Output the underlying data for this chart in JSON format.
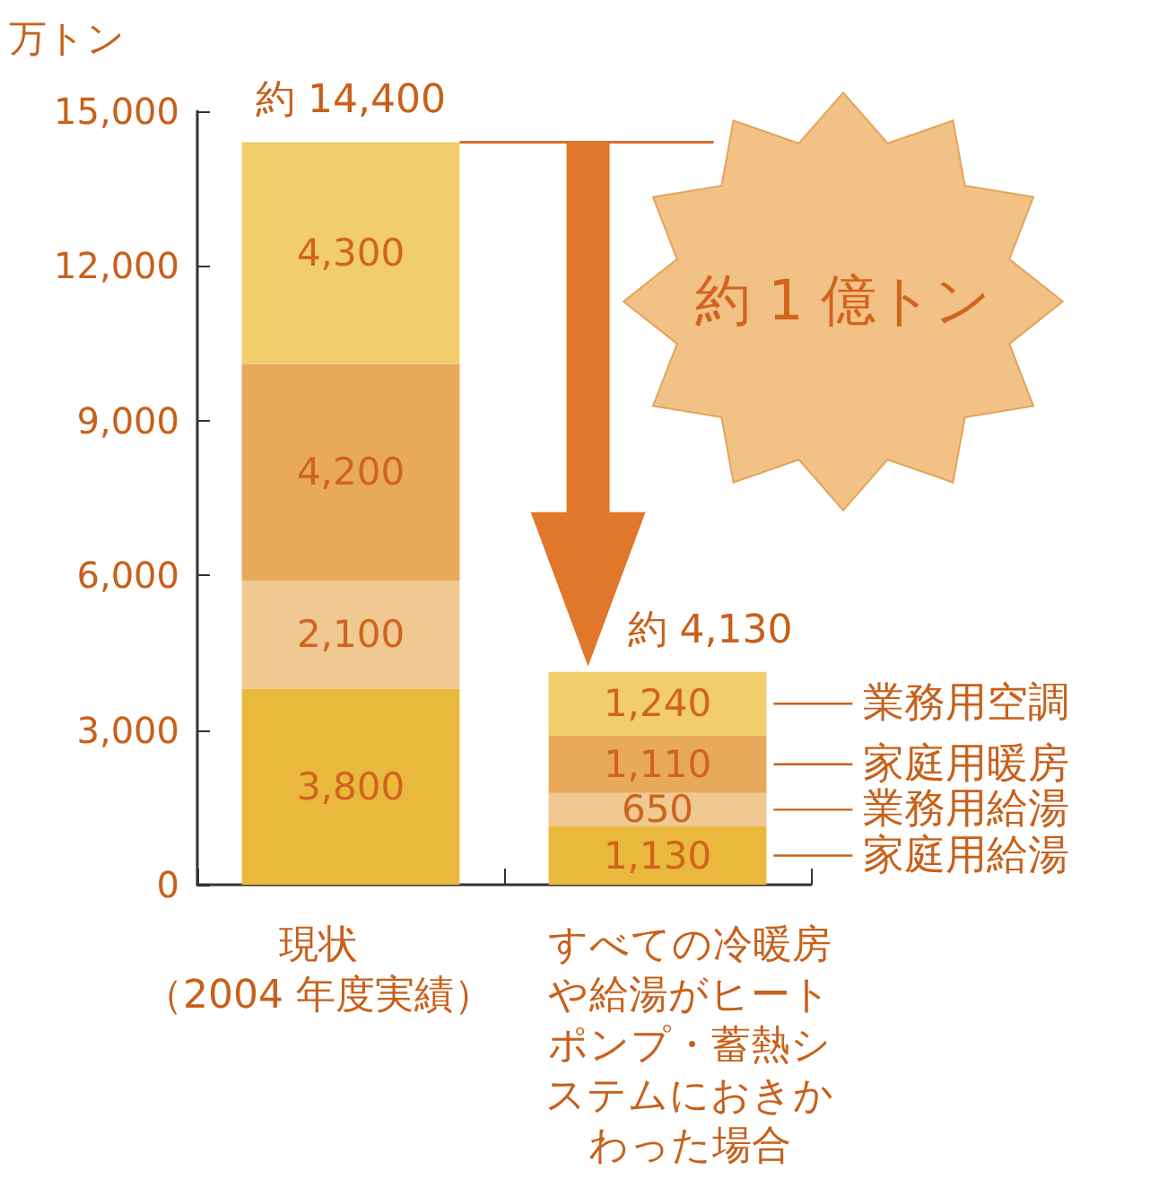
{
  "chart_data": {
    "type": "bar",
    "stacked": true,
    "ylabel": "万トン",
    "categories": [
      "現状（2004 年度実績）",
      "すべての冷暖房や給湯がヒートポンプ・蓄熱システムにおきかわった場合"
    ],
    "series": [
      {
        "name": "家庭用給湯",
        "color": "#eab83c",
        "values": [
          3800,
          1130
        ],
        "value_labels": [
          "3,800",
          "1,130"
        ]
      },
      {
        "name": "業務用給湯",
        "color": "#f0c891",
        "values": [
          2100,
          650
        ],
        "value_labels": [
          "2,100",
          "650"
        ]
      },
      {
        "name": "家庭用暖房",
        "color": "#e8a95b",
        "values": [
          4200,
          1110
        ],
        "value_labels": [
          "4,200",
          "1,110"
        ]
      },
      {
        "name": "業務用空調",
        "color": "#f2cd6b",
        "values": [
          4300,
          1240
        ],
        "value_labels": [
          "4,300",
          "1,240"
        ]
      }
    ],
    "ylim": [
      0,
      15000
    ],
    "yticks": [
      0,
      {
        "value": 3000,
        "label": "3,000"
      },
      {
        "value": 6000,
        "label": "6,000"
      },
      {
        "value": 9000,
        "label": "9,000"
      },
      {
        "value": 12000,
        "label": "12,000"
      },
      {
        "value": 15000,
        "label": "15,000"
      }
    ],
    "totals": [
      "約 14,400",
      "約 4,130"
    ],
    "annotations": [
      "約 1 億トン"
    ]
  }
}
